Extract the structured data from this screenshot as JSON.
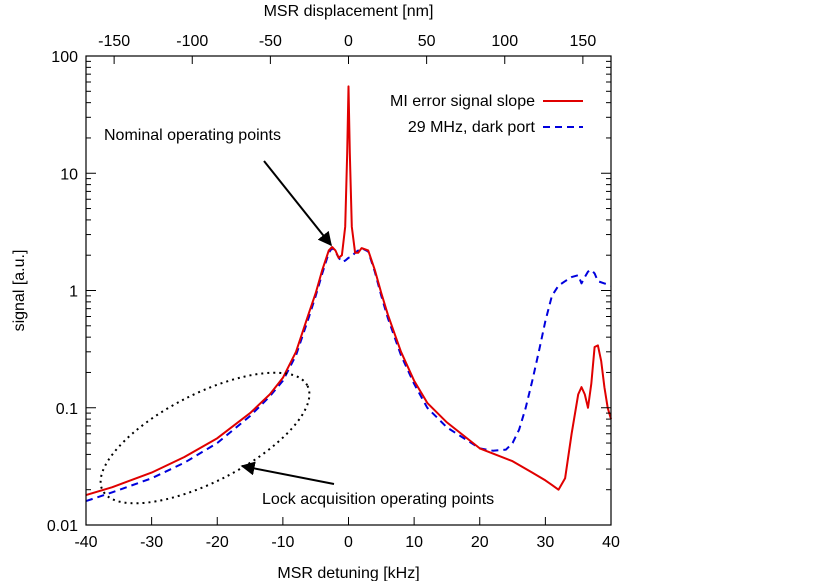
{
  "chart_data": {
    "type": "line",
    "title": "",
    "xlabel": "MSR detuning [kHz]",
    "ylabel": "signal [a.u.]",
    "x2label": "MSR displacement [nm]",
    "xlim": [
      -40,
      40
    ],
    "ylim": [
      0.01,
      100
    ],
    "yscale": "log",
    "x2lim": [
      -168,
      168
    ],
    "xticks": [
      -40,
      -30,
      -20,
      -10,
      0,
      10,
      20,
      30,
      40
    ],
    "x2ticks": [
      -150,
      -100,
      -50,
      0,
      50,
      100,
      150
    ],
    "yticks": [
      0.01,
      0.1,
      1,
      10,
      100
    ],
    "ytick_labels": [
      "0.01",
      "0.1",
      "1",
      "10",
      "100"
    ],
    "grid": false,
    "legend_position": "top-right",
    "series": [
      {
        "name": "MI error signal slope",
        "color": "#e00000",
        "dash": "solid",
        "x": [
          -40,
          -36,
          -30,
          -25,
          -20,
          -15,
          -12,
          -10,
          -8,
          -6,
          -5,
          -4,
          -3,
          -2.5,
          -2,
          -1.5,
          -1,
          -0.5,
          -0.2,
          0,
          0.2,
          0.5,
          1,
          1.5,
          2,
          3,
          4,
          5,
          6,
          8,
          10,
          12,
          15,
          20,
          25,
          28,
          30,
          31,
          32,
          33,
          34,
          35,
          35.5,
          36,
          36.5,
          37,
          37.5,
          38,
          38.5,
          39,
          39.5,
          40
        ],
        "y": [
          0.018,
          0.021,
          0.028,
          0.038,
          0.055,
          0.09,
          0.13,
          0.18,
          0.3,
          0.65,
          0.95,
          1.5,
          2.2,
          2.35,
          2.2,
          1.9,
          2.0,
          3.5,
          15,
          55,
          15,
          3.5,
          2.1,
          2.1,
          2.3,
          2.2,
          1.5,
          0.95,
          0.62,
          0.3,
          0.17,
          0.11,
          0.075,
          0.045,
          0.035,
          0.028,
          0.024,
          0.022,
          0.02,
          0.025,
          0.06,
          0.13,
          0.15,
          0.13,
          0.1,
          0.16,
          0.33,
          0.34,
          0.25,
          0.15,
          0.1,
          0.08
        ]
      },
      {
        "name": "29 MHz, dark port",
        "color": "#0000dd",
        "dash": "dashed",
        "x": [
          -40,
          -36,
          -30,
          -25,
          -20,
          -15,
          -12,
          -10,
          -8,
          -6,
          -5,
          -4,
          -3,
          -2.5,
          -2,
          -1.5,
          -1,
          -0.5,
          0,
          0.5,
          1,
          1.5,
          2,
          3,
          4,
          5,
          6,
          8,
          10,
          12,
          15,
          20,
          22,
          24,
          25,
          26,
          27,
          28,
          29,
          30,
          31,
          32,
          33,
          34,
          35,
          35.5,
          36,
          36.5,
          37,
          37.5,
          38,
          39,
          40
        ],
        "y": [
          0.016,
          0.019,
          0.025,
          0.034,
          0.05,
          0.085,
          0.125,
          0.17,
          0.28,
          0.6,
          0.9,
          1.4,
          2.1,
          2.3,
          2.15,
          1.9,
          1.75,
          1.8,
          1.9,
          1.95,
          2.1,
          2.2,
          2.3,
          2.15,
          1.45,
          0.9,
          0.58,
          0.28,
          0.16,
          0.1,
          0.068,
          0.045,
          0.043,
          0.044,
          0.05,
          0.065,
          0.1,
          0.17,
          0.3,
          0.55,
          0.9,
          1.1,
          1.2,
          1.3,
          1.35,
          1.15,
          1.3,
          1.45,
          1.5,
          1.4,
          1.2,
          1.15,
          1.1
        ]
      }
    ],
    "annotations": [
      {
        "text": "Nominal operating points",
        "target_x": -2.2,
        "target_y": 2.3
      },
      {
        "text": "Lock acquisition operating points",
        "target_x": -20,
        "target_y": 0.03
      }
    ]
  }
}
